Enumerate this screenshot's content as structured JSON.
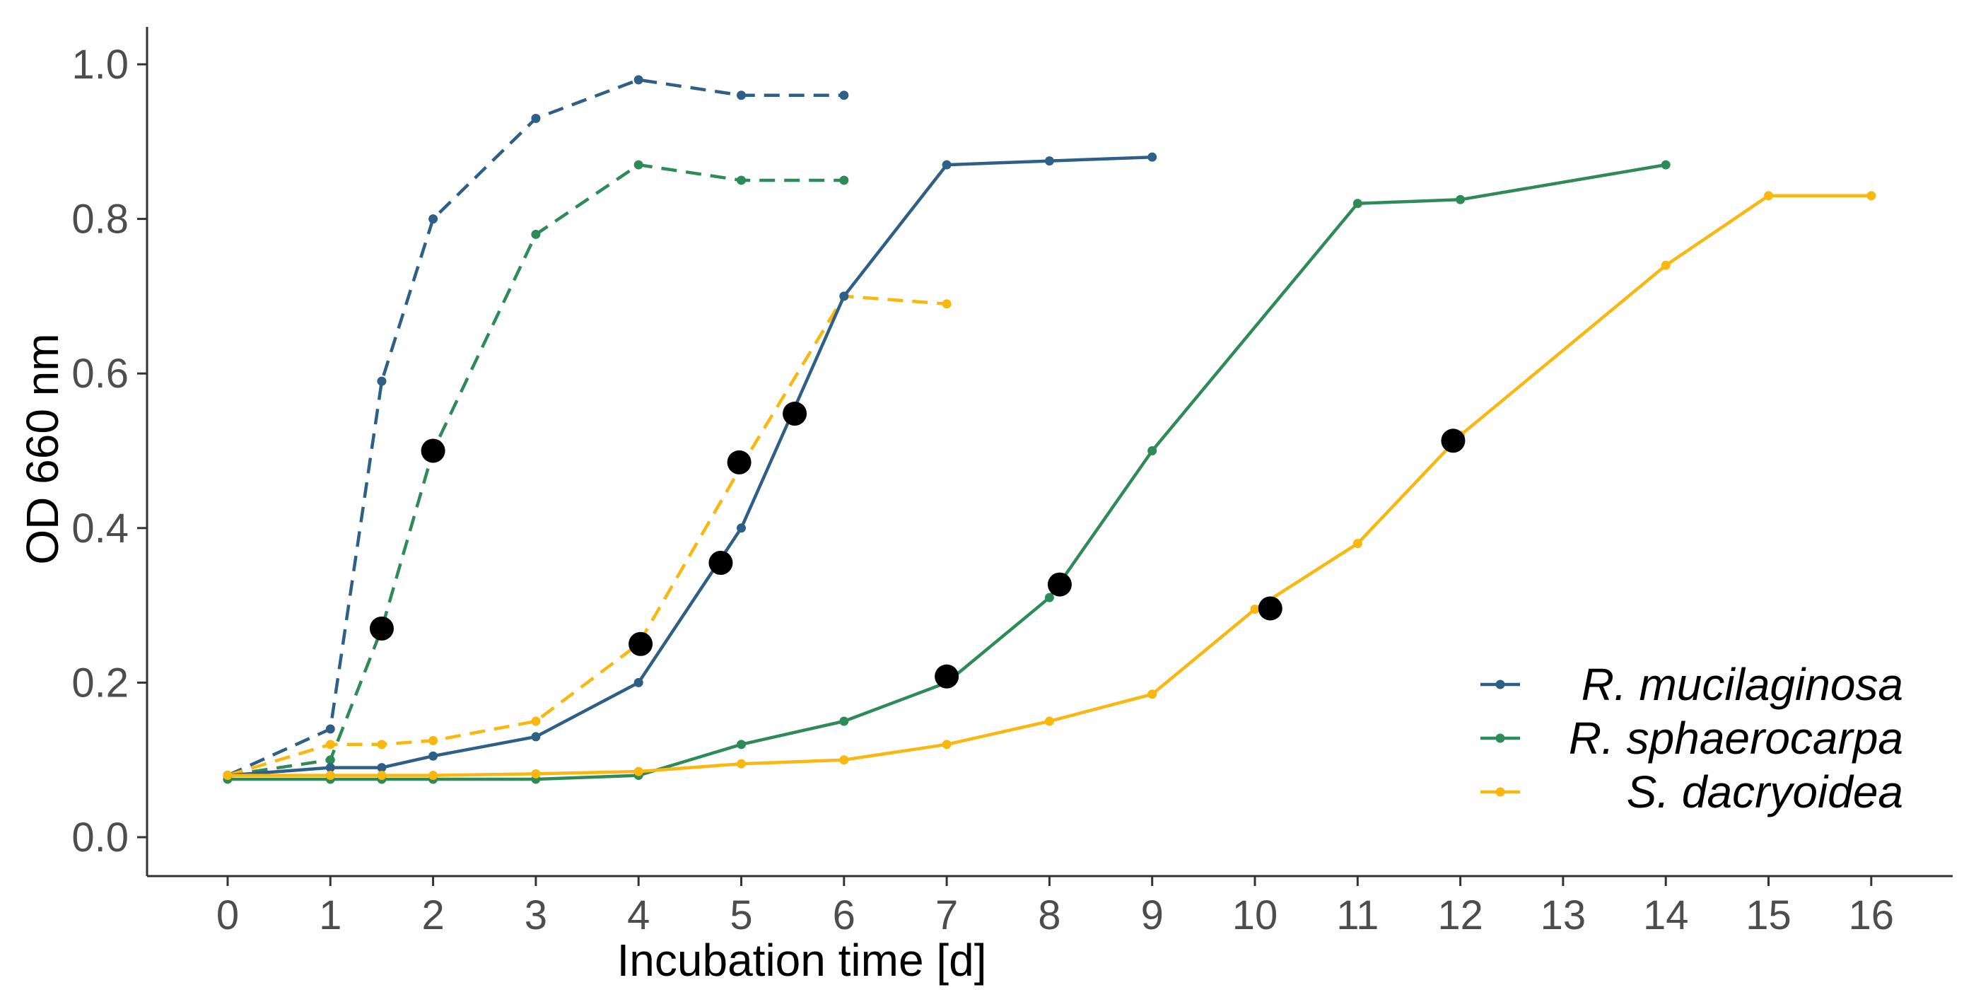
{
  "chart_data": {
    "type": "line",
    "title": "",
    "xlabel": "Incubation time [d]",
    "ylabel": "OD 660 nm",
    "xlim": [
      -0.75,
      16.75
    ],
    "ylim": [
      -0.05,
      1.05
    ],
    "x_ticks": [
      0,
      1,
      2,
      3,
      4,
      5,
      6,
      7,
      8,
      9,
      10,
      11,
      12,
      13,
      14,
      15,
      16
    ],
    "x_tick_labels": [
      "0",
      "1",
      "2",
      "3",
      "4",
      "5",
      "6",
      "7",
      "8",
      "9",
      "10",
      "11",
      "12",
      "13",
      "14",
      "15",
      "16"
    ],
    "y_ticks": [
      0,
      0.2,
      0.4,
      0.6,
      0.8,
      1.0
    ],
    "y_tick_labels": [
      "0.0",
      "0.2",
      "0.4",
      "0.6",
      "0.8",
      "1.0"
    ],
    "grid": false,
    "legend_position": "bottom-right",
    "series": [
      {
        "name": "R. mucilaginosa",
        "condition": "dashed",
        "color": "#2e5f87",
        "dash": true,
        "in_legend": false,
        "x": [
          0,
          1,
          1.5,
          2,
          3,
          4,
          5,
          6
        ],
        "y": [
          0.08,
          0.14,
          0.59,
          0.8,
          0.93,
          0.98,
          0.96,
          0.96
        ]
      },
      {
        "name": "R. sphaerocarpa",
        "condition": "dashed",
        "color": "#2e8b57",
        "dash": true,
        "in_legend": false,
        "x": [
          0,
          1,
          1.5,
          2,
          3,
          4,
          5,
          6
        ],
        "y": [
          0.08,
          0.1,
          0.27,
          0.5,
          0.78,
          0.87,
          0.85,
          0.85
        ]
      },
      {
        "name": "S. dacryoidea",
        "condition": "dashed",
        "color": "#f9b70f",
        "dash": true,
        "in_legend": false,
        "x": [
          0,
          1,
          1.5,
          2,
          3,
          4,
          5,
          6,
          7
        ],
        "y": [
          0.08,
          0.12,
          0.12,
          0.125,
          0.15,
          0.25,
          0.48,
          0.7,
          0.69
        ]
      },
      {
        "name": "R. mucilaginosa",
        "condition": "solid",
        "color": "#2e5f87",
        "dash": false,
        "in_legend": true,
        "x": [
          0,
          1,
          1.5,
          2,
          3,
          4,
          5,
          6,
          7,
          8,
          9
        ],
        "y": [
          0.08,
          0.09,
          0.09,
          0.105,
          0.13,
          0.2,
          0.4,
          0.7,
          0.87,
          0.875,
          0.88
        ]
      },
      {
        "name": "R. sphaerocarpa",
        "condition": "solid",
        "color": "#2e8b57",
        "dash": false,
        "in_legend": true,
        "x": [
          0,
          1,
          1.5,
          2,
          3,
          4,
          5,
          6,
          7,
          8,
          9,
          11,
          12,
          14
        ],
        "y": [
          0.075,
          0.075,
          0.075,
          0.075,
          0.075,
          0.08,
          0.12,
          0.15,
          0.2,
          0.31,
          0.5,
          0.82,
          0.825,
          0.87
        ]
      },
      {
        "name": "S. dacryoidea",
        "condition": "solid",
        "color": "#f9b70f",
        "dash": false,
        "in_legend": true,
        "x": [
          0,
          1,
          1.5,
          2,
          3,
          4,
          5,
          6,
          7,
          8,
          9,
          10,
          11,
          12,
          14,
          15,
          16
        ],
        "y": [
          0.08,
          0.08,
          0.08,
          0.08,
          0.082,
          0.085,
          0.095,
          0.1,
          0.12,
          0.15,
          0.185,
          0.295,
          0.38,
          0.52,
          0.74,
          0.83,
          0.83
        ]
      }
    ],
    "highlight_points": {
      "color": "#000000",
      "x": [
        1.5,
        2.0,
        4.02,
        4.8,
        4.98,
        5.52,
        7.0,
        8.1,
        10.15,
        11.93
      ],
      "y": [
        0.27,
        0.5,
        0.25,
        0.355,
        0.485,
        0.548,
        0.208,
        0.327,
        0.296,
        0.513
      ]
    }
  }
}
